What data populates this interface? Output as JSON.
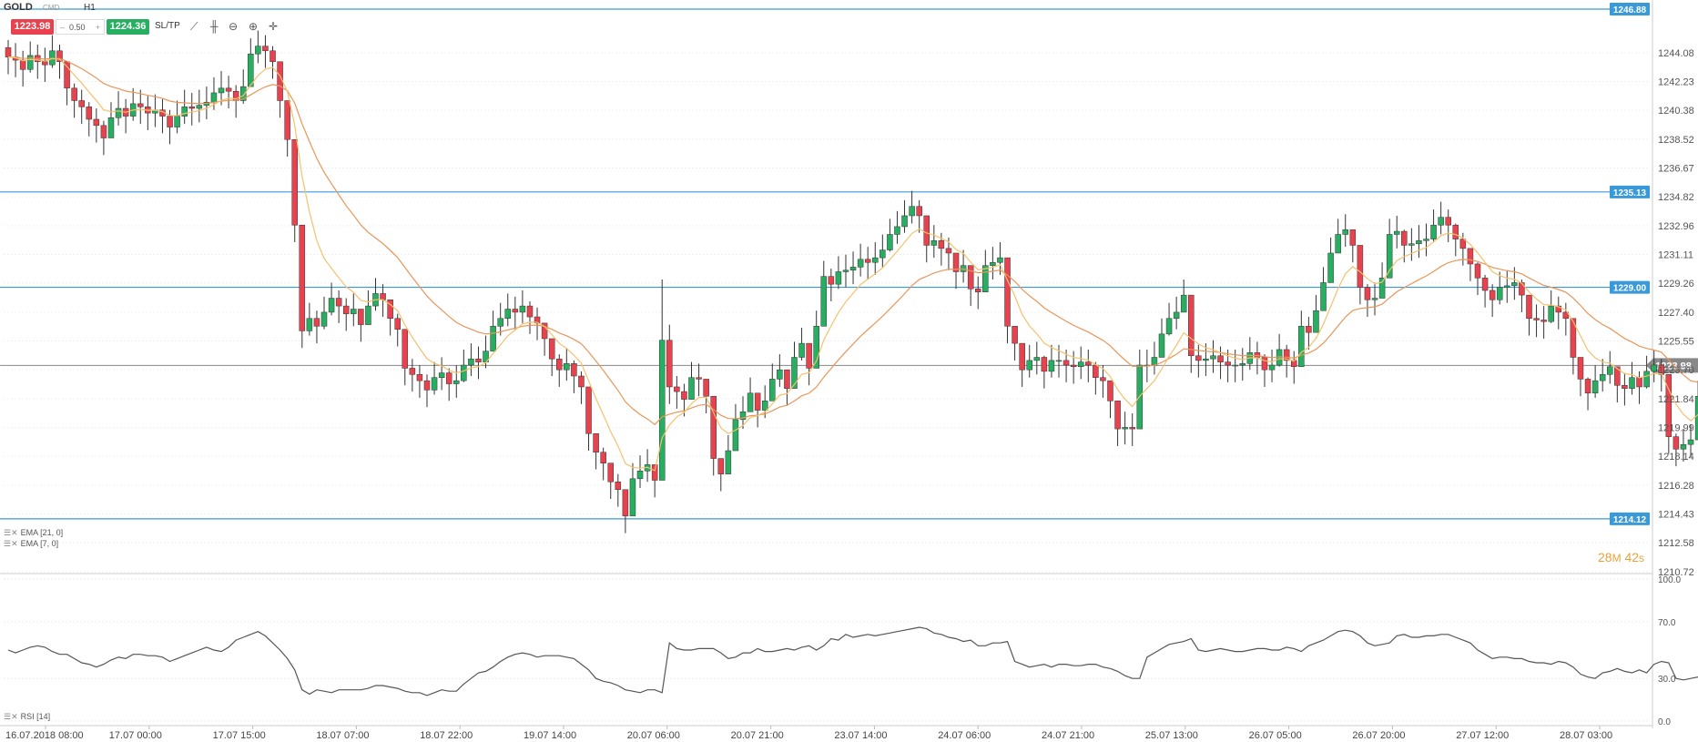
{
  "toolbar": {
    "symbol": "GOLD",
    "market": "CMD",
    "timeframe": "H1",
    "sell_price": "1223.98",
    "volume": "0.50",
    "volume_minus": "–",
    "volume_plus": "+",
    "buy_price": "1224.36",
    "sltp_label": "SL/TP",
    "icons": [
      "trend-line-icon",
      "chart-type-icon",
      "zoom-out-icon",
      "zoom-in-icon",
      "crosshair-move-icon"
    ]
  },
  "indicators": {
    "ema21": "EMA [21, 0]",
    "ema7": "EMA [7, 0]",
    "rsi": "RSI [14]"
  },
  "timer": {
    "minutes": "28",
    "min_unit": "M",
    "seconds": "42",
    "sec_unit": "s"
  },
  "colors": {
    "bull": "#27ae60",
    "bear": "#e8424f",
    "ema21": "#e8965a",
    "ema7": "#f5c16c",
    "hline": "#3a9ad9",
    "current": "#888888",
    "rsi": "#555555"
  },
  "chart_data": [
    {
      "type": "candlestick",
      "symbol": "GOLD",
      "interval": "H1",
      "ylim": [
        1210.72,
        1246.88
      ],
      "y_ticks": [
        "1244.08",
        "1242.23",
        "1240.38",
        "1238.52",
        "1236.67",
        "1234.82",
        "1232.96",
        "1231.11",
        "1229.26",
        "1227.40",
        "1225.55",
        "1223.70",
        "1221.84",
        "1219.99",
        "1218.14",
        "1216.28",
        "1214.43",
        "1212.58",
        "1210.72"
      ],
      "x_tick_labels": [
        "16.07.2018 08:00",
        "17.07 00:00",
        "17.07 15:00",
        "18.07 07:00",
        "18.07 22:00",
        "19.07 14:00",
        "20.07 06:00",
        "20.07 21:00",
        "23.07 14:00",
        "24.07 06:00",
        "24.07 21:00",
        "25.07 13:00",
        "26.07 05:00",
        "26.07 20:00",
        "27.07 12:00",
        "28.07 03:00"
      ],
      "horizontal_lines": [
        {
          "label": "1246.88",
          "value": 1246.88
        },
        {
          "label": "1235.13",
          "value": 1235.13
        },
        {
          "label": "1229.00",
          "value": 1229.0
        },
        {
          "label": "1214.12",
          "value": 1214.12
        }
      ],
      "current_price": {
        "label": "1223.98",
        "value": 1223.98
      },
      "series": [
        {
          "name": "GOLD",
          "close": [
            1243.8,
            1243.6,
            1243.0,
            1243.9,
            1243.5,
            1243.3,
            1244.2,
            1243.5,
            1241.8,
            1241.0,
            1240.6,
            1239.8,
            1239.4,
            1238.6,
            1239.9,
            1240.5,
            1240.0,
            1240.8,
            1240.6,
            1240.2,
            1240.4,
            1240.0,
            1239.3,
            1240.0,
            1240.6,
            1240.5,
            1240.7,
            1240.9,
            1241.5,
            1241.8,
            1241.6,
            1241.0,
            1241.9,
            1244.0,
            1244.5,
            1244.2,
            1243.5,
            1241.0,
            1238.5,
            1233.0,
            1226.2,
            1227.0,
            1226.5,
            1227.4,
            1228.3,
            1227.8,
            1227.3,
            1227.6,
            1226.6,
            1227.8,
            1228.6,
            1228.2,
            1227.0,
            1226.3,
            1223.8,
            1223.4,
            1223.0,
            1222.4,
            1223.2,
            1223.5,
            1222.8,
            1223.0,
            1224.0,
            1224.4,
            1224.2,
            1224.9,
            1226.5,
            1227.0,
            1227.6,
            1227.4,
            1227.8,
            1227.1,
            1226.7,
            1225.7,
            1224.4,
            1223.7,
            1224.1,
            1223.3,
            1222.6,
            1219.6,
            1218.4,
            1217.7,
            1216.5,
            1216.0,
            1214.3,
            1216.7,
            1217.2,
            1217.6,
            1216.6,
            1225.6,
            1222.6,
            1222.3,
            1221.8,
            1223.2,
            1223.1,
            1222.0,
            1218.0,
            1217.0,
            1218.5,
            1220.5,
            1221.0,
            1222.2,
            1221.1,
            1221.7,
            1223.1,
            1223.7,
            1222.5,
            1224.5,
            1225.4,
            1223.8,
            1226.5,
            1229.7,
            1229.2,
            1230.0,
            1230.1,
            1230.3,
            1230.8,
            1230.6,
            1230.9,
            1231.4,
            1232.4,
            1232.9,
            1233.6,
            1234.2,
            1233.6,
            1231.7,
            1232.0,
            1231.5,
            1231.2,
            1230.0,
            1230.4,
            1228.9,
            1228.7,
            1230.4,
            1230.6,
            1230.9,
            1226.5,
            1225.4,
            1223.7,
            1224.3,
            1224.5,
            1223.6,
            1224.3,
            1224.3,
            1224.0,
            1223.9,
            1224.2,
            1224.0,
            1223.2,
            1223.0,
            1221.7,
            1219.9,
            1220.0,
            1219.9,
            1224.0,
            1224.0,
            1224.5,
            1226.0,
            1227.0,
            1227.4,
            1228.5,
            1224.6,
            1224.3,
            1224.4,
            1224.6,
            1224.2,
            1224.0,
            1224.0,
            1224.1,
            1224.8,
            1224.5,
            1223.7,
            1224.0,
            1225.0,
            1224.3,
            1223.9,
            1226.5,
            1226.1,
            1227.5,
            1229.3,
            1231.2,
            1232.4,
            1232.7,
            1231.7,
            1229.0,
            1228.2,
            1228.3,
            1229.6,
            1232.4,
            1232.6,
            1231.7,
            1231.8,
            1232.0,
            1232.1,
            1233.0,
            1233.5,
            1233.0,
            1232.1,
            1231.5,
            1230.5,
            1229.6,
            1228.8,
            1228.2,
            1229.0,
            1229.1,
            1229.3,
            1228.5,
            1227.0,
            1226.9,
            1226.8,
            1227.8,
            1227.4,
            1227.0,
            1224.5,
            1223.1,
            1222.2,
            1223.0,
            1223.4,
            1223.9,
            1222.7,
            1222.5,
            1223.2,
            1222.6,
            1223.6,
            1224.0,
            1223.4,
            1219.4,
            1218.6,
            1218.9,
            1219.2,
            1222.0,
            1224.0
          ],
          "high": [
            1244.9,
            1244.7,
            1244.2,
            1244.8,
            1244.6,
            1244.4,
            1245.2,
            1244.6,
            1242.9,
            1242.1,
            1241.7,
            1240.9,
            1240.5,
            1239.7,
            1240.9,
            1241.6,
            1241.1,
            1241.8,
            1241.7,
            1241.3,
            1241.4,
            1241.1,
            1240.4,
            1241.0,
            1241.7,
            1241.5,
            1241.7,
            1241.9,
            1242.5,
            1242.9,
            1242.6,
            1242.0,
            1243.0,
            1245.0,
            1245.5,
            1245.2,
            1244.5,
            1242.0,
            1239.5,
            1234.0,
            1229.0,
            1228.0,
            1227.5,
            1228.4,
            1229.3,
            1228.8,
            1228.3,
            1228.6,
            1227.6,
            1228.8,
            1229.6,
            1229.2,
            1228.0,
            1227.3,
            1224.8,
            1224.4,
            1224.0,
            1223.4,
            1224.2,
            1224.5,
            1223.8,
            1224.0,
            1225.0,
            1225.4,
            1225.2,
            1225.9,
            1227.5,
            1228.0,
            1228.6,
            1228.4,
            1228.8,
            1228.1,
            1227.7,
            1226.7,
            1225.4,
            1224.7,
            1225.1,
            1224.3,
            1223.6,
            1220.6,
            1219.4,
            1218.7,
            1217.5,
            1217.0,
            1215.3,
            1217.7,
            1218.2,
            1218.6,
            1217.6,
            1229.5,
            1226.6,
            1223.3,
            1222.8,
            1224.2,
            1224.1,
            1223.0,
            1219.0,
            1218.0,
            1219.5,
            1221.5,
            1222.0,
            1223.2,
            1222.1,
            1222.7,
            1224.1,
            1224.7,
            1223.5,
            1225.5,
            1226.4,
            1224.8,
            1227.5,
            1230.7,
            1230.2,
            1231.0,
            1231.1,
            1231.3,
            1231.8,
            1231.6,
            1231.9,
            1232.4,
            1233.4,
            1233.9,
            1234.6,
            1235.2,
            1234.6,
            1232.7,
            1233.0,
            1232.5,
            1232.2,
            1231.0,
            1231.4,
            1229.9,
            1229.7,
            1231.4,
            1231.6,
            1231.9,
            1227.5,
            1226.4,
            1224.7,
            1225.3,
            1225.5,
            1224.6,
            1225.3,
            1225.3,
            1225.0,
            1224.9,
            1225.2,
            1225.0,
            1224.2,
            1224.0,
            1222.7,
            1220.9,
            1221.0,
            1220.9,
            1225.0,
            1225.0,
            1225.5,
            1227.0,
            1228.0,
            1228.4,
            1229.5,
            1225.6,
            1225.3,
            1225.4,
            1225.6,
            1225.2,
            1225.0,
            1225.0,
            1225.1,
            1225.8,
            1225.5,
            1224.7,
            1225.0,
            1226.0,
            1225.3,
            1224.9,
            1227.5,
            1227.1,
            1228.5,
            1230.3,
            1232.2,
            1233.4,
            1233.7,
            1232.7,
            1230.0,
            1229.2,
            1229.3,
            1230.6,
            1233.4,
            1233.6,
            1232.7,
            1232.8,
            1233.0,
            1233.1,
            1234.0,
            1234.5,
            1234.0,
            1233.1,
            1232.5,
            1231.5,
            1230.6,
            1229.8,
            1229.2,
            1230.0,
            1230.1,
            1230.3,
            1229.5,
            1228.0,
            1227.9,
            1227.8,
            1228.8,
            1228.4,
            1228.0,
            1225.5,
            1224.1,
            1223.2,
            1224.0,
            1224.4,
            1224.9,
            1223.7,
            1223.5,
            1224.2,
            1223.6,
            1224.6,
            1225.0,
            1224.4,
            1220.4,
            1219.6,
            1219.9,
            1220.2,
            1223.0,
            1225.0
          ],
          "low": [
            1242.7,
            1242.5,
            1241.9,
            1242.8,
            1242.4,
            1242.2,
            1243.1,
            1242.4,
            1240.7,
            1239.9,
            1239.5,
            1238.7,
            1238.3,
            1237.5,
            1238.8,
            1239.4,
            1238.9,
            1239.7,
            1239.5,
            1239.1,
            1239.3,
            1238.9,
            1238.2,
            1238.9,
            1239.5,
            1239.4,
            1239.6,
            1239.8,
            1240.4,
            1240.7,
            1240.5,
            1239.9,
            1240.8,
            1242.9,
            1243.4,
            1243.1,
            1242.4,
            1239.9,
            1237.4,
            1231.9,
            1225.1,
            1225.9,
            1225.4,
            1226.3,
            1227.2,
            1226.7,
            1226.2,
            1226.5,
            1225.5,
            1226.7,
            1227.5,
            1227.1,
            1225.9,
            1225.2,
            1222.7,
            1222.3,
            1221.9,
            1221.3,
            1222.1,
            1222.4,
            1221.7,
            1221.9,
            1222.9,
            1223.3,
            1223.1,
            1223.8,
            1225.4,
            1225.9,
            1226.5,
            1226.3,
            1226.7,
            1226.0,
            1225.6,
            1224.6,
            1223.3,
            1222.6,
            1223.0,
            1222.2,
            1221.5,
            1218.5,
            1217.3,
            1216.6,
            1215.4,
            1214.9,
            1213.2,
            1215.6,
            1216.1,
            1216.5,
            1215.5,
            1224.5,
            1221.5,
            1221.2,
            1220.7,
            1222.1,
            1222.0,
            1220.9,
            1216.9,
            1215.9,
            1217.4,
            1219.4,
            1219.9,
            1221.1,
            1220.0,
            1220.6,
            1222.0,
            1222.6,
            1221.4,
            1223.4,
            1224.3,
            1222.7,
            1225.4,
            1228.6,
            1228.1,
            1228.9,
            1229.0,
            1229.2,
            1229.7,
            1229.5,
            1229.8,
            1230.3,
            1231.3,
            1231.8,
            1232.5,
            1233.1,
            1232.5,
            1230.6,
            1230.9,
            1230.4,
            1230.1,
            1228.9,
            1229.3,
            1227.8,
            1227.6,
            1229.3,
            1229.5,
            1229.8,
            1225.4,
            1224.3,
            1222.6,
            1223.2,
            1223.4,
            1222.5,
            1223.2,
            1223.2,
            1222.9,
            1222.8,
            1223.1,
            1222.9,
            1222.1,
            1221.9,
            1220.6,
            1218.8,
            1218.9,
            1218.8,
            1222.9,
            1222.9,
            1223.4,
            1224.9,
            1225.9,
            1226.3,
            1227.4,
            1223.5,
            1223.2,
            1223.3,
            1223.5,
            1223.1,
            1222.9,
            1222.9,
            1223.0,
            1223.7,
            1223.4,
            1222.6,
            1222.9,
            1223.9,
            1223.2,
            1222.8,
            1225.4,
            1225.0,
            1226.4,
            1228.2,
            1230.1,
            1231.3,
            1231.6,
            1230.6,
            1227.9,
            1227.1,
            1227.2,
            1228.5,
            1231.3,
            1231.5,
            1230.6,
            1230.7,
            1230.9,
            1231.0,
            1231.9,
            1232.4,
            1231.9,
            1231.0,
            1230.4,
            1229.4,
            1228.5,
            1227.7,
            1227.1,
            1227.9,
            1228.0,
            1228.2,
            1227.4,
            1225.9,
            1225.8,
            1225.7,
            1226.7,
            1226.3,
            1225.9,
            1223.4,
            1222.0,
            1221.1,
            1221.9,
            1222.3,
            1222.8,
            1221.6,
            1221.4,
            1222.1,
            1221.5,
            1222.5,
            1222.9,
            1222.3,
            1218.3,
            1217.5,
            1217.8,
            1218.1,
            1220.9,
            1222.9
          ]
        }
      ]
    },
    {
      "type": "line",
      "name": "RSI [14]",
      "ylim": [
        0,
        100
      ],
      "y_ticks": [
        "100.0",
        "70.0",
        "30.0",
        "0.0"
      ],
      "values": [
        50,
        48,
        50,
        52,
        53,
        52,
        49,
        47,
        47,
        44,
        41,
        40,
        38,
        40,
        43,
        45,
        44,
        47,
        47,
        46,
        46,
        45,
        42,
        44,
        46,
        48,
        50,
        52,
        50,
        49,
        52,
        57,
        59,
        61,
        63,
        60,
        55,
        50,
        44,
        36,
        22,
        19,
        22,
        21,
        20,
        22,
        22,
        22,
        22,
        23,
        25,
        25,
        24,
        23,
        21,
        20,
        20,
        18,
        20,
        22,
        21,
        21,
        26,
        30,
        34,
        35,
        38,
        42,
        45,
        47,
        48,
        47,
        45,
        46,
        46,
        46,
        45,
        44,
        40,
        36,
        30,
        28,
        27,
        25,
        22,
        21,
        20,
        22,
        22,
        20,
        55,
        51,
        50,
        50,
        51,
        51,
        51,
        48,
        44,
        45,
        48,
        48,
        51,
        49,
        49,
        50,
        51,
        50,
        52,
        53,
        50,
        53,
        58,
        57,
        61,
        59,
        60,
        61,
        60,
        61,
        62,
        63,
        64,
        65,
        66,
        65,
        62,
        61,
        59,
        58,
        56,
        57,
        53,
        53,
        55,
        55,
        56,
        42,
        40,
        38,
        39,
        40,
        38,
        40,
        40,
        39,
        39,
        40,
        40,
        38,
        37,
        35,
        32,
        30,
        30,
        45,
        48,
        51,
        54,
        55,
        56,
        58,
        50,
        49,
        50,
        51,
        50,
        49,
        49,
        50,
        51,
        51,
        50,
        50,
        52,
        51,
        49,
        53,
        55,
        57,
        60,
        63,
        64,
        63,
        60,
        55,
        53,
        54,
        55,
        60,
        61,
        59,
        59,
        60,
        60,
        61,
        61,
        59,
        57,
        55,
        50,
        47,
        44,
        45,
        45,
        44,
        44,
        42,
        41,
        41,
        40,
        42,
        41,
        38,
        33,
        31,
        30,
        34,
        35,
        37,
        35,
        34,
        36,
        34,
        40,
        42,
        41,
        30,
        29,
        30,
        31,
        38,
        47,
        48
      ]
    }
  ]
}
